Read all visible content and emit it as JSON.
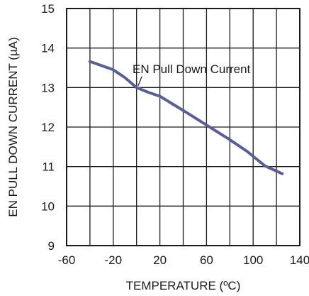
{
  "chart_data": {
    "type": "line",
    "title": "",
    "xlabel": "TEMPERATURE (ºC)",
    "ylabel": "EN PULL DOWN CURRENT (µA)",
    "xlim": [
      -60,
      140
    ],
    "ylim": [
      9,
      15
    ],
    "x_ticks": [
      -60,
      -20,
      20,
      60,
      100,
      140
    ],
    "x_tick_labels": [
      "-60",
      "-20",
      "20",
      "60",
      "100",
      "140"
    ],
    "x_minor_grid_step": 20,
    "y_ticks": [
      9,
      10,
      11,
      12,
      13,
      14,
      15
    ],
    "y_tick_labels": [
      "9",
      "10",
      "11",
      "12",
      "13",
      "14",
      "15"
    ],
    "grid": true,
    "series": [
      {
        "name": "EN Pull Down Current",
        "color": "#5b5e96",
        "x": [
          -40,
          -20,
          -10,
          0,
          10,
          20,
          40,
          60,
          80,
          95,
          110,
          125
        ],
        "y": [
          13.66,
          13.45,
          13.25,
          13.0,
          12.88,
          12.78,
          12.42,
          12.05,
          11.68,
          11.38,
          11.02,
          10.82
        ]
      }
    ],
    "annotations": [
      {
        "text": "EN Pull Down Current",
        "points_to_x": 0,
        "points_to_y": 13.0
      }
    ]
  }
}
